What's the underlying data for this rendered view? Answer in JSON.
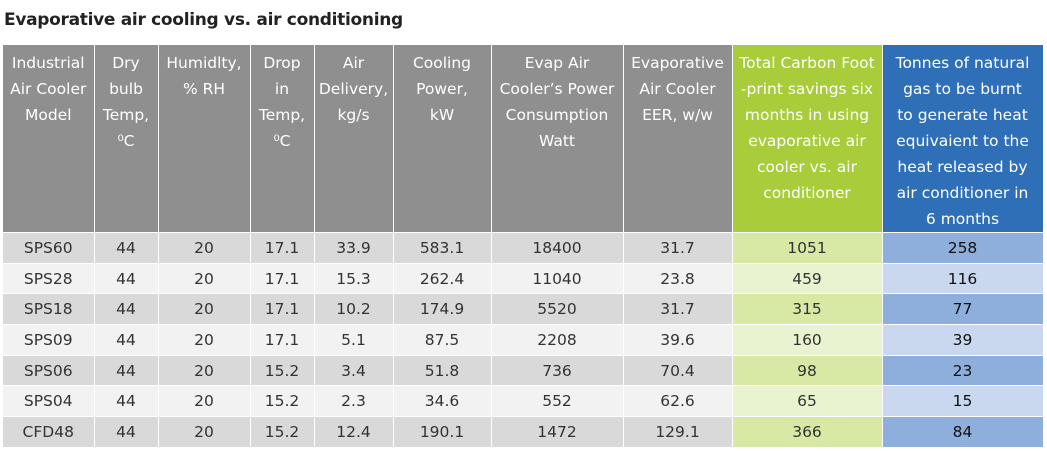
{
  "title": "Evaporative air cooling vs. air conditioning",
  "headers": [
    "Industrial Air Cooler Model",
    "Dry bulb Temp, ⁰C",
    "Humidlty, % RH",
    "Drop in Temp, ⁰C",
    "Air Delivery, kg/s",
    "Cooling Power, kW",
    "Evap Air Cooler’s Power Consumption Watt",
    "Evaporative Air Cooler EER, w/w",
    "Total Carbon Foot -print savings six months in using evaporative air cooler vs. air conditioner",
    "Tonnes of natural gas to be burnt to generate heat equivaient to the heat released by air conditioner in 6 months"
  ],
  "header_lines": [
    [
      "Industrial",
      "Air Cooler",
      "Model"
    ],
    [
      "Dry",
      "bulb",
      "Temp,",
      "⁰C"
    ],
    [
      "Humidlty,",
      "% RH"
    ],
    [
      "Drop",
      "in",
      "Temp,",
      "⁰C"
    ],
    [
      "Air",
      "Delivery,",
      "kg/s"
    ],
    [
      "Cooling",
      "Power,",
      "kW"
    ],
    [
      "Evap Air",
      "Cooler’s Power",
      "Consumption",
      "Watt"
    ],
    [
      "Evaporative",
      "Air Cooler",
      "EER, w/w"
    ],
    [
      "Total Carbon Foot",
      "-print savings six",
      "months in using",
      "evaporative air",
      "cooler vs. air",
      "conditioner"
    ],
    [
      "Tonnes of natural",
      "gas to be burnt",
      "to generate heat",
      "equivaient to the",
      "heat released by",
      "air conditioner in",
      "6 months"
    ]
  ],
  "rows": [
    [
      "SPS60",
      "44",
      "20",
      "17.1",
      "33.9",
      "583.1",
      "18400",
      "31.7",
      "1051",
      "258"
    ],
    [
      "SPS28",
      "44",
      "20",
      "17.1",
      "15.3",
      "262.4",
      "11040",
      "23.8",
      "459",
      "116"
    ],
    [
      "SPS18",
      "44",
      "20",
      "17.1",
      "10.2",
      "174.9",
      "5520",
      "31.7",
      "315",
      "77"
    ],
    [
      "SPS09",
      "44",
      "20",
      "17.1",
      "5.1",
      "87.5",
      "2208",
      "39.6",
      "160",
      "39"
    ],
    [
      "SPS06",
      "44",
      "20",
      "15.2",
      "3.4",
      "51.8",
      "736",
      "70.4",
      "98",
      "23"
    ],
    [
      "SPS04",
      "44",
      "20",
      "15.2",
      "2.3",
      "34.6",
      "552",
      "62.6",
      "65",
      "15"
    ],
    [
      "CFD48",
      "44",
      "20",
      "15.2",
      "12.4",
      "190.1",
      "1472",
      "129.1",
      "366",
      "84"
    ]
  ],
  "colors": {
    "header_gray": "#8f8f8f",
    "header_green": "#a8cc3a",
    "header_blue": "#2f6fb7",
    "row_gray_dark": "#d9d9d9",
    "row_gray_light": "#f2f2f2",
    "cell_green_dark": "#d7e9a4",
    "cell_green_light": "#e9f3cf",
    "cell_blue_dark": "#8eafdb",
    "cell_blue_light": "#c9d8ee"
  }
}
